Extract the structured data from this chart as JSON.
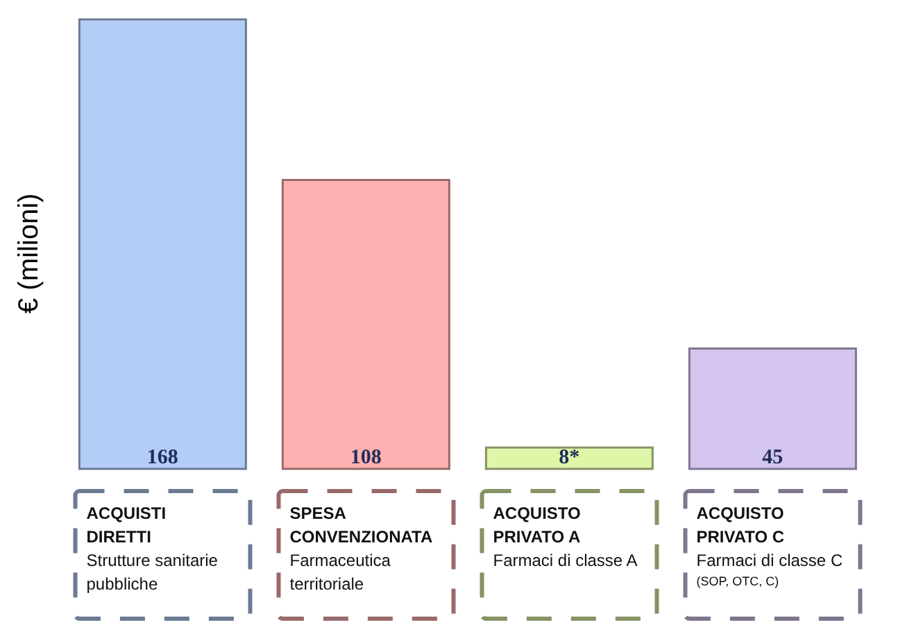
{
  "chart_data": {
    "type": "bar",
    "ylabel": "€ (milioni)",
    "categories": [
      "ACQUISTI DIRETTI\nStrutture sanitarie pubbliche",
      "SPESA CONVENZIONATA\nFarmaceutica territoriale",
      "ACQUISTO PRIVATO A\nFarmaci di classe A",
      "ACQUISTO PRIVATO C\nFarmaci di classe C\n(SOP, OTC, C)"
    ],
    "values": [
      168,
      108,
      8,
      45
    ],
    "colors": [
      "#b3cdf7",
      "#ffb0b0",
      "#dff5a8",
      "#d4c5ee"
    ],
    "value_labels": [
      "168",
      "108",
      "8*",
      "45"
    ],
    "grid": false,
    "legend": false
  }
}
